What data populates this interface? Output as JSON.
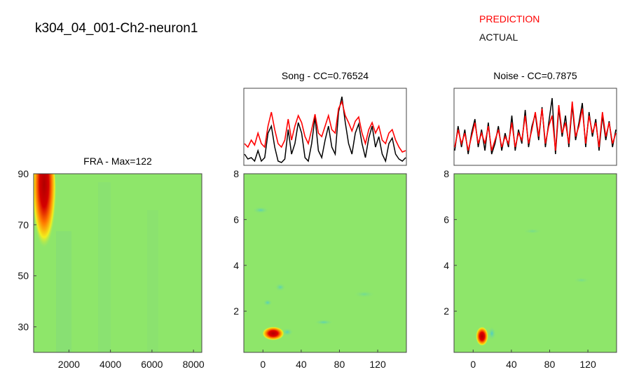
{
  "figure": {
    "title": "k304_04_001-Ch2-neuron1",
    "legend": {
      "prediction": "PREDICTION",
      "actual": "ACTUAL",
      "prediction_color": "#ff0000",
      "actual_color": "#000000"
    }
  },
  "chart_data": [
    {
      "type": "heatmap",
      "title": "FRA - Max=122",
      "x_ticks": [
        2000,
        4000,
        6000,
        8000
      ],
      "y_ticks": [
        30,
        50,
        70,
        90
      ],
      "xlim": [
        300,
        8400
      ],
      "ylim": [
        20,
        90
      ],
      "background_color": "#8ee66a",
      "colormap": [
        "#3cc6e0",
        "#8ee66a",
        "#f3ee1e",
        "#ff7a00",
        "#c40000"
      ],
      "max_value": 122,
      "peak_region": {
        "x_range": [
          500,
          1300
        ],
        "y_range": [
          58,
          90
        ],
        "peak_y": 82
      }
    },
    {
      "type": "line",
      "title": "Song - CC=0.76524",
      "cc": 0.76524,
      "series": [
        {
          "name": "PREDICTION",
          "color": "#ff0000",
          "values": [
            0.3,
            0.25,
            0.35,
            0.28,
            0.45,
            0.3,
            0.25,
            0.55,
            0.75,
            0.5,
            0.3,
            0.25,
            0.35,
            0.65,
            0.35,
            0.55,
            0.7,
            0.6,
            0.4,
            0.3,
            0.5,
            0.72,
            0.45,
            0.4,
            0.55,
            0.7,
            0.5,
            0.45,
            0.8,
            0.9,
            0.7,
            0.6,
            0.48,
            0.62,
            0.68,
            0.45,
            0.3,
            0.5,
            0.6,
            0.45,
            0.55,
            0.35,
            0.3,
            0.45,
            0.5,
            0.35,
            0.25,
            0.18,
            0.2
          ]
        },
        {
          "name": "ACTUAL",
          "color": "#000000",
          "values": [
            0.15,
            0.08,
            0.1,
            0.05,
            0.2,
            0.05,
            0.1,
            0.45,
            0.55,
            0.25,
            0.05,
            0.03,
            0.08,
            0.5,
            0.15,
            0.3,
            0.6,
            0.45,
            0.1,
            0.05,
            0.3,
            0.68,
            0.2,
            0.1,
            0.35,
            0.55,
            0.25,
            0.15,
            0.75,
            0.97,
            0.6,
            0.3,
            0.15,
            0.45,
            0.58,
            0.3,
            0.1,
            0.38,
            0.55,
            0.25,
            0.4,
            0.15,
            0.05,
            0.3,
            0.38,
            0.15,
            0.08,
            0.05,
            0.1
          ]
        }
      ]
    },
    {
      "type": "heatmap",
      "title": "",
      "x_ticks": [
        0,
        40,
        80,
        120
      ],
      "y_ticks": [
        2,
        4,
        6,
        8
      ],
      "xlim": [
        -20,
        150
      ],
      "ylim": [
        0.2,
        8
      ],
      "background_color": "#8ee66a",
      "colormap": [
        "#3cc6e0",
        "#8ee66a",
        "#f3ee1e",
        "#ff7a00",
        "#c40000"
      ],
      "hotspot": {
        "x": 12,
        "y": 0.8
      }
    },
    {
      "type": "line",
      "title": "Noise - CC=0.7875",
      "cc": 0.7875,
      "series": [
        {
          "name": "PREDICTION",
          "color": "#ff0000",
          "values": [
            0.25,
            0.5,
            0.3,
            0.45,
            0.2,
            0.4,
            0.6,
            0.3,
            0.45,
            0.3,
            0.55,
            0.2,
            0.35,
            0.5,
            0.25,
            0.4,
            0.3,
            0.6,
            0.25,
            0.45,
            0.35,
            0.7,
            0.3,
            0.5,
            0.75,
            0.4,
            0.8,
            0.3,
            0.55,
            0.7,
            0.2,
            0.85,
            0.45,
            0.6,
            0.3,
            0.9,
            0.4,
            0.55,
            0.8,
            0.3,
            0.7,
            0.45,
            0.6,
            0.25,
            0.75,
            0.4,
            0.6,
            0.3,
            0.45
          ]
        },
        {
          "name": "ACTUAL",
          "color": "#000000",
          "values": [
            0.2,
            0.55,
            0.25,
            0.5,
            0.15,
            0.45,
            0.65,
            0.25,
            0.5,
            0.2,
            0.6,
            0.15,
            0.3,
            0.55,
            0.2,
            0.45,
            0.25,
            0.7,
            0.2,
            0.5,
            0.3,
            0.78,
            0.25,
            0.55,
            0.72,
            0.35,
            0.82,
            0.25,
            0.6,
            0.95,
            0.15,
            0.8,
            0.4,
            0.7,
            0.25,
            0.85,
            0.35,
            0.6,
            0.88,
            0.25,
            0.75,
            0.4,
            0.65,
            0.2,
            0.7,
            0.35,
            0.62,
            0.25,
            0.5
          ]
        }
      ]
    },
    {
      "type": "heatmap",
      "title": "",
      "x_ticks": [
        0,
        40,
        80,
        120
      ],
      "y_ticks": [
        2,
        4,
        6,
        8
      ],
      "xlim": [
        -20,
        150
      ],
      "ylim": [
        0.2,
        8
      ],
      "background_color": "#8ee66a",
      "colormap": [
        "#3cc6e0",
        "#8ee66a",
        "#f3ee1e",
        "#ff7a00",
        "#c40000"
      ],
      "hotspot": {
        "x": 10,
        "y": 0.9
      }
    }
  ]
}
